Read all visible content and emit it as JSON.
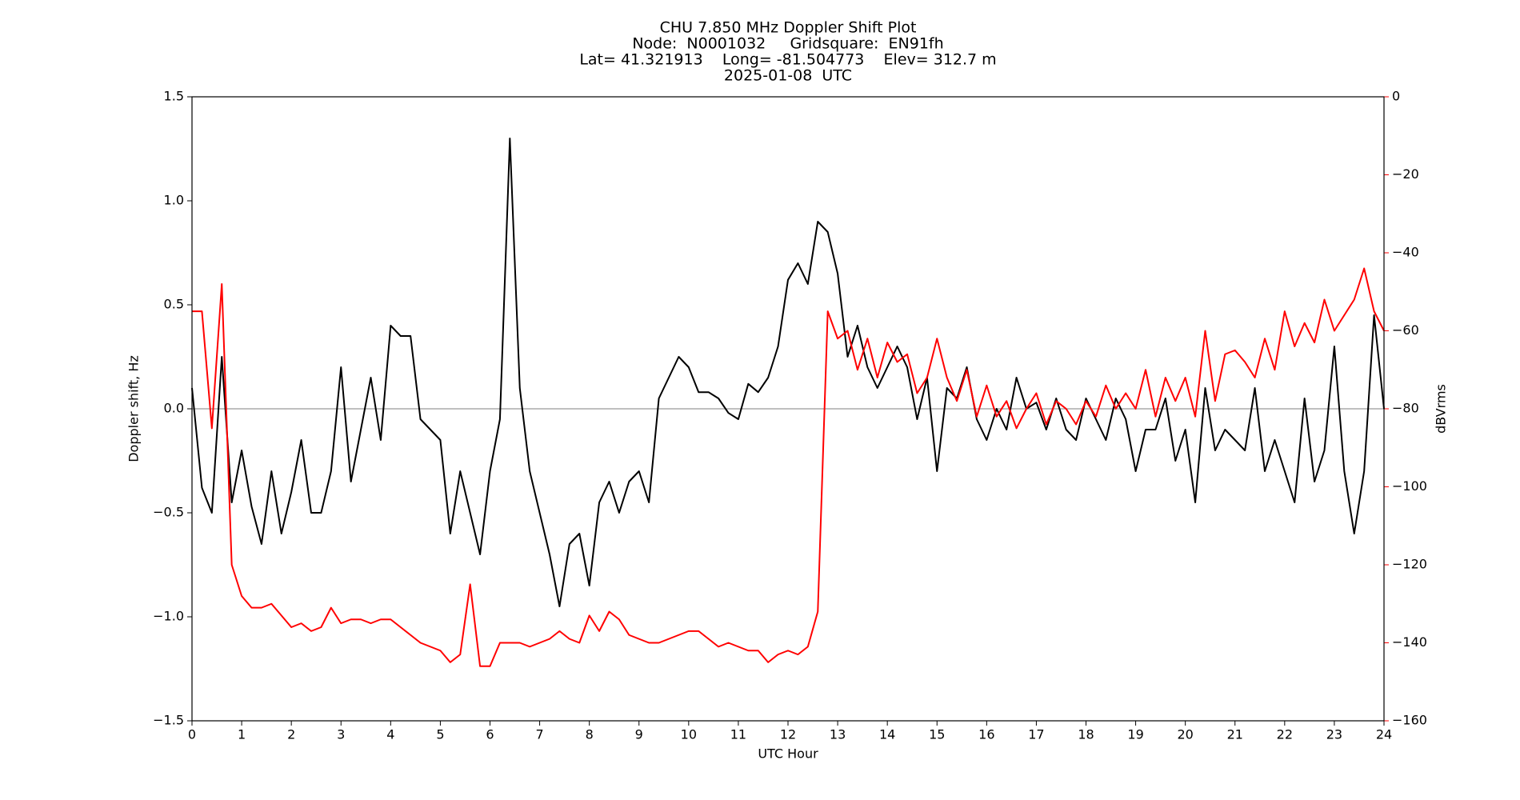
{
  "chart_data": {
    "type": "line",
    "title": [
      "CHU 7.850 MHz Doppler Shift Plot",
      "Node:  N0001032     Gridsquare:  EN91fh",
      "Lat= 41.321913    Long= -81.504773    Elev= 312.7 m",
      "2025-01-08  UTC"
    ],
    "x_label": "UTC Hour",
    "y_label": "Doppler shift, Hz",
    "y2_label": "dBVrms",
    "x": [
      0,
      0.2,
      0.4,
      0.6,
      0.8,
      1,
      1.2,
      1.4,
      1.6,
      1.8,
      2,
      2.2,
      2.4,
      2.6,
      2.8,
      3,
      3.2,
      3.4,
      3.6,
      3.8,
      4,
      4.2,
      4.4,
      4.6,
      4.8,
      5,
      5.2,
      5.4,
      5.6,
      5.8,
      6,
      6.2,
      6.4,
      6.6,
      6.8,
      7,
      7.2,
      7.4,
      7.6,
      7.8,
      8,
      8.2,
      8.4,
      8.6,
      8.8,
      9,
      9.2,
      9.4,
      9.6,
      9.8,
      10,
      10.2,
      10.4,
      10.6,
      10.8,
      11,
      11.2,
      11.4,
      11.6,
      11.8,
      12,
      12.2,
      12.4,
      12.6,
      12.8,
      13,
      13.2,
      13.4,
      13.6,
      13.8,
      14,
      14.2,
      14.4,
      14.6,
      14.8,
      15,
      15.2,
      15.4,
      15.6,
      15.8,
      16,
      16.2,
      16.4,
      16.6,
      16.8,
      17,
      17.2,
      17.4,
      17.6,
      17.8,
      18,
      18.2,
      18.4,
      18.6,
      18.8,
      19,
      19.2,
      19.4,
      19.6,
      19.8,
      20,
      20.2,
      20.4,
      20.6,
      20.8,
      21,
      21.2,
      21.4,
      21.6,
      21.8,
      22,
      22.2,
      22.4,
      22.6,
      22.8,
      23,
      23.2,
      23.4,
      23.6,
      23.8,
      24
    ],
    "series": [
      {
        "color": "#000000",
        "values": [
          0.1,
          -0.38,
          -0.5,
          0.25,
          -0.45,
          -0.2,
          -0.47,
          -0.65,
          -0.3,
          -0.6,
          -0.4,
          -0.15,
          -0.5,
          -0.5,
          -0.3,
          0.2,
          -0.35,
          -0.1,
          0.15,
          -0.15,
          0.4,
          0.35,
          0.35,
          -0.05,
          -0.1,
          -0.15,
          -0.6,
          -0.3,
          -0.5,
          -0.7,
          -0.3,
          -0.05,
          1.3,
          0.1,
          -0.3,
          -0.5,
          -0.7,
          -0.95,
          -0.65,
          -0.6,
          -0.85,
          -0.45,
          -0.35,
          -0.5,
          -0.35,
          -0.3,
          -0.45,
          0.05,
          0.15,
          0.25,
          0.2,
          0.08,
          0.08,
          0.05,
          -0.02,
          -0.05,
          0.12,
          0.08,
          0.15,
          0.3,
          0.62,
          0.7,
          0.6,
          0.9,
          0.85,
          0.65,
          0.25,
          0.4,
          0.2,
          0.1,
          0.2,
          0.3,
          0.2,
          -0.05,
          0.15,
          -0.3,
          0.1,
          0.05,
          0.2,
          -0.05,
          -0.15,
          0,
          -0.1,
          0.15,
          0,
          0.03,
          -0.1,
          0.05,
          -0.1,
          -0.15,
          0.05,
          -0.05,
          -0.15,
          0.05,
          -0.05,
          -0.3,
          -0.1,
          -0.1,
          0.05,
          -0.25,
          -0.1,
          -0.45,
          0.1,
          -0.2,
          -0.1,
          -0.15,
          -0.2,
          0.1,
          -0.3,
          -0.15,
          -0.3,
          -0.45,
          0.05,
          -0.35,
          -0.2,
          0.3,
          -0.3,
          -0.6,
          -0.3,
          0.45,
          0
        ]
      },
      {
        "color": "#ff0000",
        "axis": "y2",
        "values": [
          -55,
          -55,
          -85,
          -48,
          -120,
          -128,
          -131,
          -131,
          -130,
          -133,
          -136,
          -135,
          -137,
          -136,
          -131,
          -135,
          -134,
          -134,
          -135,
          -134,
          -134,
          -136,
          -138,
          -140,
          -141,
          -142,
          -145,
          -143,
          -125,
          -146,
          -146,
          -140,
          -140,
          -140,
          -141,
          -140,
          -139,
          -137,
          -139,
          -140,
          -133,
          -137,
          -132,
          -134,
          -138,
          -139,
          -140,
          -140,
          -139,
          -138,
          -137,
          -137,
          -139,
          -141,
          -140,
          -141,
          -142,
          -142,
          -145,
          -143,
          -142,
          -143,
          -141,
          -132,
          -55,
          -62,
          -60,
          -70,
          -62,
          -72,
          -63,
          -68,
          -66,
          -76,
          -72,
          -62,
          -72,
          -78,
          -70,
          -82,
          -74,
          -82,
          -78,
          -85,
          -80,
          -76,
          -84,
          -78,
          -80,
          -84,
          -78,
          -82,
          -74,
          -80,
          -76,
          -80,
          -70,
          -82,
          -72,
          -78,
          -72,
          -82,
          -60,
          -78,
          -66,
          -65,
          -68,
          -72,
          -62,
          -70,
          -55,
          -64,
          -58,
          -63,
          -52,
          -60,
          -56,
          -52,
          -44,
          -55,
          -60
        ]
      }
    ],
    "xlim": [
      0,
      24
    ],
    "xticks": [
      0,
      1,
      2,
      3,
      4,
      5,
      6,
      7,
      8,
      9,
      10,
      11,
      12,
      13,
      14,
      15,
      16,
      17,
      18,
      19,
      20,
      21,
      22,
      23,
      24
    ],
    "ylim": [
      -1.5,
      1.5
    ],
    "yticks": [
      {
        "value": -1.5,
        "label": "−1.5"
      },
      {
        "value": -1,
        "label": "−1.0"
      },
      {
        "value": -0.5,
        "label": "−0.5"
      },
      {
        "value": 0,
        "label": "0.0"
      },
      0.5,
      {
        "value": 1,
        "label": "1.0"
      },
      1.5
    ],
    "y2lim": [
      -160,
      0
    ],
    "y2ticks": [
      {
        "value": -160,
        "label": "−160"
      },
      {
        "value": -140,
        "label": "−140"
      },
      {
        "value": -120,
        "label": "−120"
      },
      {
        "value": -100,
        "label": "−100"
      },
      {
        "value": -80,
        "label": "−80"
      },
      {
        "value": -60,
        "label": "−60"
      },
      {
        "value": -40,
        "label": "−40"
      },
      {
        "value": -20,
        "label": "−20"
      },
      0
    ],
    "y2_color": "#ff0000",
    "hline": 0,
    "hline_color": "#999999"
  }
}
